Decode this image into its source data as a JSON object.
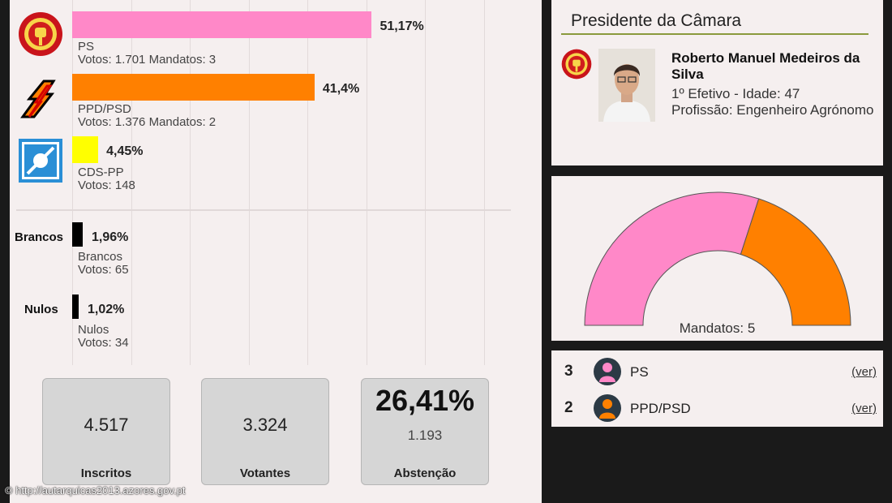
{
  "chart_data": {
    "type": "bar",
    "orientation": "horizontal",
    "xlim": [
      0,
      100
    ],
    "parties": [
      {
        "name": "PS",
        "value": 51.17,
        "pct_label": "51,17%",
        "detail": "Votos: 1.701 Mandatos: 3",
        "color": "#ff88c8"
      },
      {
        "name": "PPD/PSD",
        "value": 41.4,
        "pct_label": "41,4%",
        "detail": "Votos: 1.376 Mandatos: 2",
        "color": "#ff8000"
      },
      {
        "name": "CDS-PP",
        "value": 4.45,
        "pct_label": "4,45%",
        "detail": "Votos: 148",
        "color": "#ffff00"
      }
    ],
    "other": [
      {
        "row_label": "Brancos",
        "name": "Brancos",
        "value": 1.96,
        "pct_label": "1,96%",
        "detail": "Votos: 65",
        "color": "#000000"
      },
      {
        "row_label": "Nulos",
        "name": "Nulos",
        "value": 1.02,
        "pct_label": "1,02%",
        "detail": "Votos: 34",
        "color": "#000000"
      }
    ],
    "seat_gauge": {
      "type": "pie",
      "caption": "Mandatos: 5",
      "slices": [
        {
          "party": "PS",
          "seats": 3,
          "color": "#ff88c8"
        },
        {
          "party": "PPD/PSD",
          "seats": 2,
          "color": "#ff8000"
        }
      ]
    }
  },
  "stats": [
    {
      "value": "4.517",
      "label": "Inscritos"
    },
    {
      "value": "3.324",
      "label": "Votantes"
    },
    {
      "value": "26,41%",
      "sub": "1.193",
      "label": "Abstenção"
    }
  ],
  "president": {
    "heading": "Presidente da Câmara",
    "name": "Roberto Manuel Medeiros da Silva",
    "line1": "1º Efetivo - Idade: 47",
    "line2": "Profissão: Engenheiro Agrónomo"
  },
  "seats": [
    {
      "count": "3",
      "party": "PS",
      "link": "(ver)",
      "color": "#ff88c8"
    },
    {
      "count": "2",
      "party": "PPD/PSD",
      "link": "(ver)",
      "color": "#ff8000"
    }
  ],
  "footer": "© http://autarquicas2013.azores.gov.pt",
  "icons": {
    "ps": "ps-party-logo-icon",
    "psd": "psd-party-logo-icon",
    "cds": "cds-party-logo-icon"
  }
}
